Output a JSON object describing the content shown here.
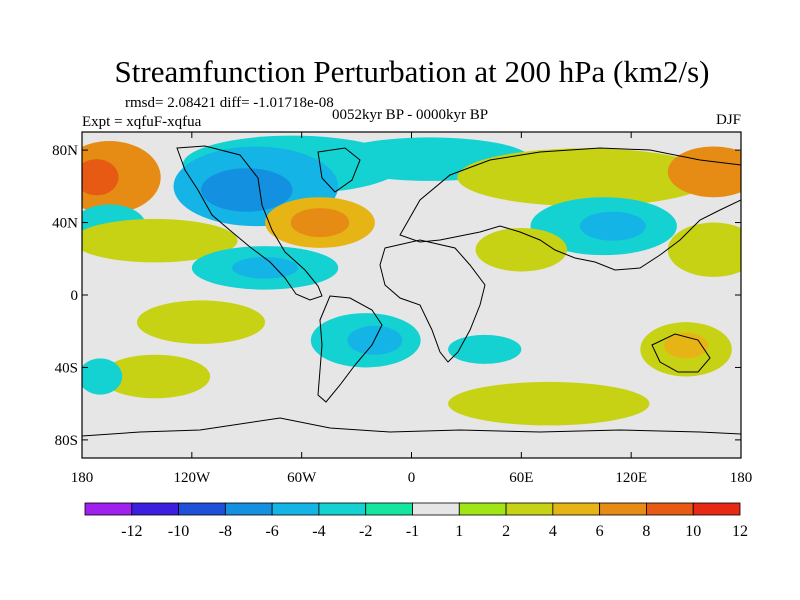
{
  "chart_data": {
    "type": "heatmap",
    "title": "Streamfunction Perturbation at 200 hPa (km2/s)",
    "stats_line": "rmsd= 2.08421 diff= -1.01718e-08",
    "experiment_label": "Expt = xqfuF-xqfua",
    "period_label": "0052kyr BP - 0000kyr BP",
    "season_label": "DJF",
    "units": "km2/s",
    "lon_range": [
      -180,
      180
    ],
    "lat_range": [
      -90,
      90
    ],
    "x_ticks": [
      {
        "value": -180,
        "label": "180"
      },
      {
        "value": -120,
        "label": "120W"
      },
      {
        "value": -60,
        "label": "60W"
      },
      {
        "value": 0,
        "label": "0"
      },
      {
        "value": 60,
        "label": "60E"
      },
      {
        "value": 120,
        "label": "120E"
      },
      {
        "value": 180,
        "label": "180"
      }
    ],
    "y_ticks": [
      {
        "value": 80,
        "label": "80N"
      },
      {
        "value": 40,
        "label": "40N"
      },
      {
        "value": 0,
        "label": "0"
      },
      {
        "value": -40,
        "label": "40S"
      },
      {
        "value": -80,
        "label": "80S"
      }
    ],
    "colorbar": {
      "colors": [
        "#a020f0",
        "#3c1ee0",
        "#1e50d8",
        "#1490e0",
        "#14b4e6",
        "#14d2d2",
        "#14e6a0",
        "#e6e6e6",
        "#a0e614",
        "#c8d214",
        "#e6b414",
        "#e68c14",
        "#e65a14",
        "#e62814"
      ],
      "labels": [
        "-12",
        "-10",
        "-8",
        "-6",
        "-4",
        "-2",
        "-1",
        "1",
        "2",
        "4",
        "6",
        "8",
        "10",
        "12"
      ]
    },
    "regions": [
      {
        "name": "n-pacific-high",
        "lon": -165,
        "lat": 65,
        "rx": 28,
        "ry": 20,
        "level": 4
      },
      {
        "name": "n-pacific-core",
        "lon": -172,
        "lat": 65,
        "rx": 12,
        "ry": 10,
        "level": 5
      },
      {
        "name": "arctic-low-band",
        "lon": -65,
        "lat": 72,
        "rx": 60,
        "ry": 16,
        "level": -2
      },
      {
        "name": "n-america-low",
        "lon": -85,
        "lat": 60,
        "rx": 45,
        "ry": 22,
        "level": -3
      },
      {
        "name": "n-america-low-core",
        "lon": -90,
        "lat": 58,
        "rx": 25,
        "ry": 12,
        "level": -4
      },
      {
        "name": "arctic-low-east",
        "lon": 10,
        "lat": 75,
        "rx": 55,
        "ry": 12,
        "level": -2
      },
      {
        "name": "n-atlantic-high",
        "lon": -50,
        "lat": 40,
        "rx": 30,
        "ry": 14,
        "level": 3
      },
      {
        "name": "n-atlantic-high-core",
        "lon": -50,
        "lat": 40,
        "rx": 16,
        "ry": 8,
        "level": 4
      },
      {
        "name": "e-pacific-low",
        "lon": -165,
        "lat": 38,
        "rx": 20,
        "ry": 12,
        "level": -2
      },
      {
        "name": "e-pacific-high",
        "lon": -140,
        "lat": 30,
        "rx": 45,
        "ry": 12,
        "level": 2
      },
      {
        "name": "subtropical-low",
        "lon": -80,
        "lat": 15,
        "rx": 40,
        "ry": 12,
        "level": -2
      },
      {
        "name": "subtropical-low-core",
        "lon": -80,
        "lat": 15,
        "rx": 18,
        "ry": 6,
        "level": -3
      },
      {
        "name": "eurasia-high",
        "lon": 95,
        "lat": 65,
        "rx": 70,
        "ry": 16,
        "level": 2
      },
      {
        "name": "pacific-ne-high",
        "lon": 165,
        "lat": 68,
        "rx": 25,
        "ry": 14,
        "level": 4
      },
      {
        "name": "asia-low",
        "lon": 105,
        "lat": 38,
        "rx": 40,
        "ry": 16,
        "level": -2
      },
      {
        "name": "asia-low-core",
        "lon": 110,
        "lat": 38,
        "rx": 18,
        "ry": 8,
        "level": -3
      },
      {
        "name": "middle-east-high",
        "lon": 60,
        "lat": 25,
        "rx": 25,
        "ry": 12,
        "level": 2
      },
      {
        "name": "w-pacific-high",
        "lon": 165,
        "lat": 25,
        "rx": 25,
        "ry": 15,
        "level": 2
      },
      {
        "name": "tropical-high",
        "lon": -115,
        "lat": -15,
        "rx": 35,
        "ry": 12,
        "level": 2
      },
      {
        "name": "s-atlantic-low",
        "lon": -25,
        "lat": -25,
        "rx": 30,
        "ry": 15,
        "level": -2
      },
      {
        "name": "s-atlantic-low-core",
        "lon": -20,
        "lat": -25,
        "rx": 15,
        "ry": 8,
        "level": -3
      },
      {
        "name": "s-pacific-high",
        "lon": -140,
        "lat": -45,
        "rx": 30,
        "ry": 12,
        "level": 2
      },
      {
        "name": "indian-ocean-high",
        "lon": 75,
        "lat": -60,
        "rx": 55,
        "ry": 12,
        "level": 2
      },
      {
        "name": "australia-high",
        "lon": 150,
        "lat": -30,
        "rx": 25,
        "ry": 15,
        "level": 2
      },
      {
        "name": "australia-high-core",
        "lon": 150,
        "lat": -28,
        "rx": 12,
        "ry": 7,
        "level": 3
      },
      {
        "name": "sw-pacific-low",
        "lon": -170,
        "lat": -45,
        "rx": 12,
        "ry": 10,
        "level": -2
      },
      {
        "name": "s-indian-low",
        "lon": 40,
        "lat": -30,
        "rx": 20,
        "ry": 8,
        "level": -2
      }
    ]
  }
}
